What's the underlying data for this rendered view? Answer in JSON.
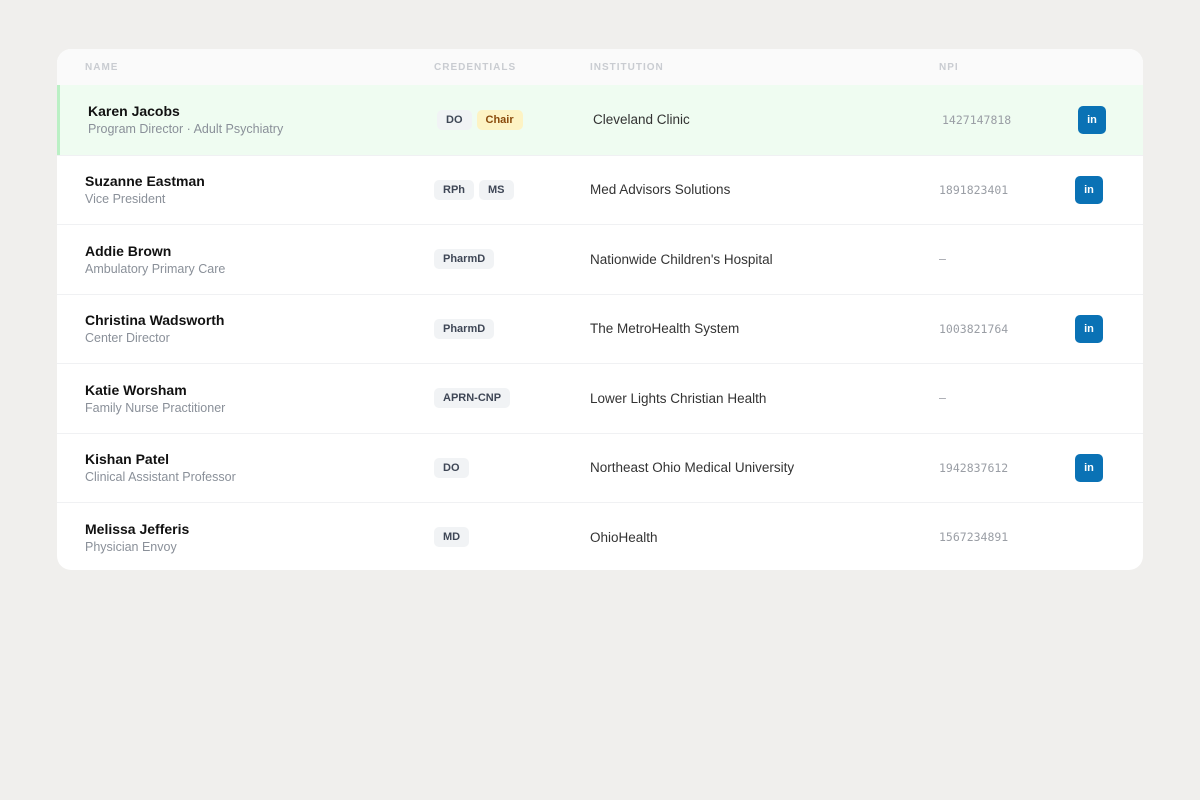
{
  "table": {
    "columns": [
      "NAME",
      "CREDENTIALS",
      "INSTITUTION",
      "NPI"
    ],
    "rows": [
      {
        "name": "Karen Jacobs",
        "title": "Program Director · Adult Psychiatry",
        "credentials": [
          "DO"
        ],
        "role_badge": "Chair",
        "institution": "Cleveland Clinic",
        "npi": "1427147818",
        "linkedin": "in",
        "selected": true
      },
      {
        "name": "Suzanne Eastman",
        "title": "Vice President",
        "credentials": [
          "RPh",
          "MS"
        ],
        "institution": "Med Advisors Solutions",
        "npi": "1891823401",
        "linkedin": "in"
      },
      {
        "name": "Addie Brown",
        "title": "Ambulatory Primary Care",
        "credentials": [
          "PharmD"
        ],
        "institution": "Nationwide Children's Hospital",
        "npi": "—"
      },
      {
        "name": "Christina Wadsworth",
        "title": "Center Director",
        "credentials": [
          "PharmD"
        ],
        "institution": "The MetroHealth System",
        "npi": "1003821764",
        "linkedin": "in"
      },
      {
        "name": "Katie Worsham",
        "title": "Family Nurse Practitioner",
        "credentials": [
          "APRN-CNP"
        ],
        "institution": "Lower Lights Christian Health",
        "npi": "—"
      },
      {
        "name": "Kishan Patel",
        "title": "Clinical Assistant Professor",
        "credentials": [
          "DO"
        ],
        "institution": "Northeast Ohio Medical University",
        "npi": "1942837612",
        "linkedin": "in"
      },
      {
        "name": "Melissa Jefferis",
        "title": "Physician Envoy",
        "credentials": [
          "MD"
        ],
        "institution": "OhioHealth",
        "npi": "1567234891"
      }
    ]
  }
}
